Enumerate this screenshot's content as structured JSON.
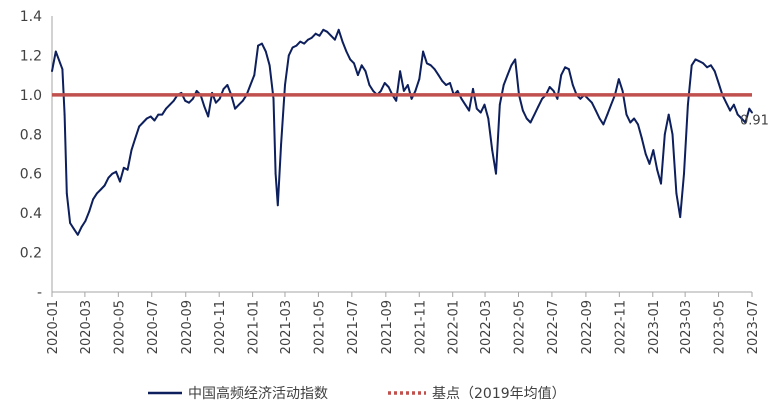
{
  "chart_data": {
    "type": "line",
    "title": "",
    "xlabel": "",
    "ylabel": "",
    "ylim": [
      0,
      1.4
    ],
    "y_ticks": [
      {
        "value": 0,
        "label": "-"
      },
      {
        "value": 0.2,
        "label": "0.2"
      },
      {
        "value": 0.4,
        "label": "0.4"
      },
      {
        "value": 0.6,
        "label": "0.6"
      },
      {
        "value": 0.8,
        "label": "0.8"
      },
      {
        "value": 1.0,
        "label": "1.0"
      },
      {
        "value": 1.2,
        "label": "1.2"
      },
      {
        "value": 1.4,
        "label": "1.4"
      }
    ],
    "x_range": [
      "2020-01-01",
      "2023-07-01"
    ],
    "x_ticks": [
      "2020-01",
      "2020-03",
      "2020-05",
      "2020-07",
      "2020-09",
      "2020-11",
      "2021-01",
      "2021-03",
      "2021-05",
      "2021-07",
      "2021-09",
      "2021-11",
      "2022-01",
      "2022-03",
      "2022-05",
      "2022-07",
      "2022-09",
      "2022-11",
      "2023-01",
      "2023-03",
      "2023-05",
      "2023-07"
    ],
    "grid": false,
    "legend_position": "bottom",
    "series": [
      {
        "name": "中国高频经济活动指数",
        "color": "#0d1f5c",
        "x": [
          "2020-01-01",
          "2020-01-08",
          "2020-01-16",
          "2020-01-20",
          "2020-01-24",
          "2020-01-28",
          "2020-02-03",
          "2020-02-10",
          "2020-02-17",
          "2020-02-24",
          "2020-03-02",
          "2020-03-09",
          "2020-03-16",
          "2020-03-23",
          "2020-03-30",
          "2020-04-06",
          "2020-04-13",
          "2020-04-20",
          "2020-04-27",
          "2020-05-04",
          "2020-05-11",
          "2020-05-18",
          "2020-05-25",
          "2020-06-01",
          "2020-06-08",
          "2020-06-15",
          "2020-06-22",
          "2020-06-29",
          "2020-07-06",
          "2020-07-13",
          "2020-07-20",
          "2020-07-27",
          "2020-08-03",
          "2020-08-10",
          "2020-08-17",
          "2020-08-24",
          "2020-08-31",
          "2020-09-07",
          "2020-09-14",
          "2020-09-21",
          "2020-09-28",
          "2020-10-05",
          "2020-10-12",
          "2020-10-19",
          "2020-10-26",
          "2020-11-02",
          "2020-11-09",
          "2020-11-16",
          "2020-11-23",
          "2020-11-30",
          "2020-12-07",
          "2020-12-14",
          "2020-12-21",
          "2020-12-28",
          "2021-01-04",
          "2021-01-11",
          "2021-01-18",
          "2021-01-25",
          "2021-02-01",
          "2021-02-08",
          "2021-02-12",
          "2021-02-16",
          "2021-02-22",
          "2021-03-01",
          "2021-03-08",
          "2021-03-15",
          "2021-03-22",
          "2021-03-29",
          "2021-04-05",
          "2021-04-12",
          "2021-04-19",
          "2021-04-26",
          "2021-05-03",
          "2021-05-10",
          "2021-05-17",
          "2021-05-24",
          "2021-05-31",
          "2021-06-07",
          "2021-06-14",
          "2021-06-21",
          "2021-06-28",
          "2021-07-05",
          "2021-07-12",
          "2021-07-19",
          "2021-07-26",
          "2021-08-02",
          "2021-08-09",
          "2021-08-16",
          "2021-08-23",
          "2021-08-30",
          "2021-09-06",
          "2021-09-13",
          "2021-09-20",
          "2021-09-27",
          "2021-10-04",
          "2021-10-11",
          "2021-10-18",
          "2021-10-25",
          "2021-11-01",
          "2021-11-08",
          "2021-11-15",
          "2021-11-22",
          "2021-11-29",
          "2021-12-06",
          "2021-12-13",
          "2021-12-20",
          "2021-12-27",
          "2022-01-03",
          "2022-01-10",
          "2022-01-17",
          "2022-01-24",
          "2022-01-31",
          "2022-02-07",
          "2022-02-14",
          "2022-02-21",
          "2022-02-28",
          "2022-03-07",
          "2022-03-14",
          "2022-03-21",
          "2022-03-28",
          "2022-04-04",
          "2022-04-11",
          "2022-04-18",
          "2022-04-25",
          "2022-05-02",
          "2022-05-09",
          "2022-05-16",
          "2022-05-23",
          "2022-05-30",
          "2022-06-06",
          "2022-06-13",
          "2022-06-20",
          "2022-06-27",
          "2022-07-04",
          "2022-07-11",
          "2022-07-18",
          "2022-07-25",
          "2022-08-01",
          "2022-08-08",
          "2022-08-15",
          "2022-08-22",
          "2022-08-29",
          "2022-09-05",
          "2022-09-12",
          "2022-09-19",
          "2022-09-26",
          "2022-10-03",
          "2022-10-10",
          "2022-10-17",
          "2022-10-24",
          "2022-10-31",
          "2022-11-07",
          "2022-11-14",
          "2022-11-21",
          "2022-11-28",
          "2022-12-05",
          "2022-12-12",
          "2022-12-19",
          "2022-12-26",
          "2023-01-02",
          "2023-01-09",
          "2023-01-16",
          "2023-01-23",
          "2023-01-30",
          "2023-02-06",
          "2023-02-13",
          "2023-02-20",
          "2023-02-27",
          "2023-03-06",
          "2023-03-13",
          "2023-03-20",
          "2023-03-27",
          "2023-04-03",
          "2023-04-10",
          "2023-04-17",
          "2023-04-24",
          "2023-05-01",
          "2023-05-08",
          "2023-05-15",
          "2023-05-22",
          "2023-05-29",
          "2023-06-05",
          "2023-06-12",
          "2023-06-19",
          "2023-06-26",
          "2023-07-01"
        ],
        "values": [
          1.12,
          1.22,
          1.16,
          1.13,
          0.9,
          0.5,
          0.35,
          0.32,
          0.29,
          0.33,
          0.36,
          0.41,
          0.47,
          0.5,
          0.52,
          0.54,
          0.58,
          0.6,
          0.61,
          0.56,
          0.63,
          0.62,
          0.72,
          0.78,
          0.84,
          0.86,
          0.88,
          0.89,
          0.87,
          0.9,
          0.9,
          0.93,
          0.95,
          0.97,
          1.0,
          1.01,
          0.97,
          0.96,
          0.98,
          1.02,
          1.0,
          0.94,
          0.89,
          1.01,
          0.96,
          0.98,
          1.03,
          1.05,
          1.0,
          0.93,
          0.95,
          0.97,
          1.0,
          1.05,
          1.1,
          1.25,
          1.26,
          1.22,
          1.15,
          0.98,
          0.6,
          0.44,
          0.75,
          1.05,
          1.2,
          1.24,
          1.25,
          1.27,
          1.26,
          1.28,
          1.29,
          1.31,
          1.3,
          1.33,
          1.32,
          1.3,
          1.28,
          1.33,
          1.27,
          1.22,
          1.18,
          1.16,
          1.1,
          1.15,
          1.12,
          1.05,
          1.02,
          1.0,
          1.02,
          1.06,
          1.04,
          1.0,
          0.97,
          1.12,
          1.02,
          1.05,
          0.98,
          1.02,
          1.08,
          1.22,
          1.16,
          1.15,
          1.13,
          1.1,
          1.07,
          1.05,
          1.06,
          1.0,
          1.02,
          0.98,
          0.95,
          0.92,
          1.03,
          0.93,
          0.91,
          0.95,
          0.88,
          0.72,
          0.6,
          0.95,
          1.05,
          1.1,
          1.15,
          1.18,
          1.0,
          0.92,
          0.88,
          0.86,
          0.9,
          0.94,
          0.98,
          1.0,
          1.04,
          1.02,
          0.98,
          1.1,
          1.14,
          1.13,
          1.05,
          1.0,
          0.98,
          1.0,
          0.98,
          0.96,
          0.92,
          0.88,
          0.85,
          0.9,
          0.95,
          1.0,
          1.08,
          1.02,
          0.9,
          0.86,
          0.88,
          0.85,
          0.78,
          0.7,
          0.65,
          0.72,
          0.62,
          0.55,
          0.8,
          0.9,
          0.8,
          0.5,
          0.38,
          0.6,
          0.95,
          1.15,
          1.18,
          1.17,
          1.16,
          1.14,
          1.15,
          1.12,
          1.06,
          1.0,
          0.96,
          0.92,
          0.95,
          0.9,
          0.88,
          0.86,
          0.93,
          0.91
        ],
        "end_label": "0.91"
      },
      {
        "name": "基点（2019年均值）",
        "color": "#c0504d",
        "x": [
          "2020-01-01",
          "2023-07-01"
        ],
        "values": [
          1.0,
          1.0
        ]
      }
    ]
  }
}
